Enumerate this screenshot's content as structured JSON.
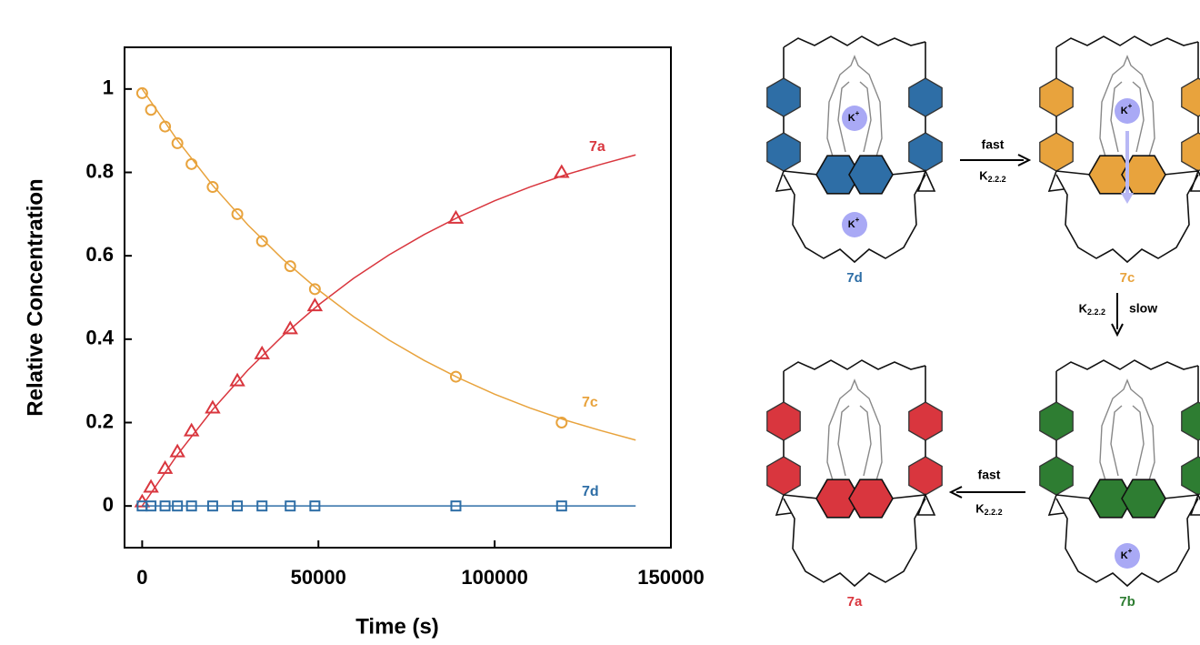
{
  "chart_data": {
    "type": "scatter",
    "xlabel": "Time (s)",
    "ylabel": "Relative Concentration",
    "xlim": [
      -5000,
      150000
    ],
    "xticks": [
      0,
      50000,
      100000,
      150000
    ],
    "ylim": [
      -0.1,
      1.1
    ],
    "yticks": [
      0,
      0.2,
      0.4,
      0.6,
      0.8,
      1
    ],
    "x": [
      0,
      2500,
      6500,
      10000,
      14000,
      20000,
      27000,
      34000,
      42000,
      49000,
      89000,
      119000
    ],
    "fit_x": [
      0,
      10000,
      20000,
      30000,
      40000,
      50000,
      60000,
      70000,
      80000,
      90000,
      100000,
      110000,
      120000,
      130000,
      140000
    ],
    "series": [
      {
        "name": "7a",
        "color": "#d9363e",
        "marker": "triangle",
        "values": [
          0.01,
          0.045,
          0.09,
          0.13,
          0.18,
          0.235,
          0.3,
          0.365,
          0.425,
          0.48,
          0.69,
          0.8
        ],
        "fit_values": [
          0,
          0.123,
          0.231,
          0.326,
          0.409,
          0.482,
          0.546,
          0.602,
          0.651,
          0.694,
          0.732,
          0.765,
          0.794,
          0.819,
          0.842
        ]
      },
      {
        "name": "7c",
        "color": "#e8a33d",
        "marker": "circle",
        "values": [
          0.99,
          0.95,
          0.91,
          0.87,
          0.82,
          0.765,
          0.7,
          0.635,
          0.575,
          0.52,
          0.31,
          0.2
        ],
        "fit_values": [
          1,
          0.877,
          0.769,
          0.674,
          0.591,
          0.518,
          0.454,
          0.398,
          0.349,
          0.306,
          0.268,
          0.235,
          0.206,
          0.181,
          0.158
        ]
      },
      {
        "name": "7d",
        "color": "#2e6ea6",
        "marker": "square",
        "values": [
          0,
          0,
          0,
          0,
          0,
          0,
          0,
          0,
          0,
          0,
          0,
          0
        ],
        "fit_values": [
          0,
          0,
          0,
          0,
          0,
          0,
          0,
          0,
          0,
          0,
          0,
          0,
          0,
          0,
          0
        ]
      }
    ]
  },
  "diagram": {
    "ion": {
      "symbol": "K",
      "charge": "+"
    },
    "molecules": [
      {
        "label": "7d",
        "color": "#2e6ea6"
      },
      {
        "label": "7c",
        "color": "#e8a33d"
      },
      {
        "label": "7a",
        "color": "#d9363e"
      },
      {
        "label": "7b",
        "color": "#2e7d32"
      }
    ],
    "arrows": [
      {
        "text": "fast",
        "symbol": "K",
        "subscript": "2.2.2"
      },
      {
        "text": "slow",
        "symbol": "K",
        "subscript": "2.2.2"
      },
      {
        "text": "fast",
        "symbol": "K",
        "subscript": "2.2.2"
      }
    ]
  }
}
